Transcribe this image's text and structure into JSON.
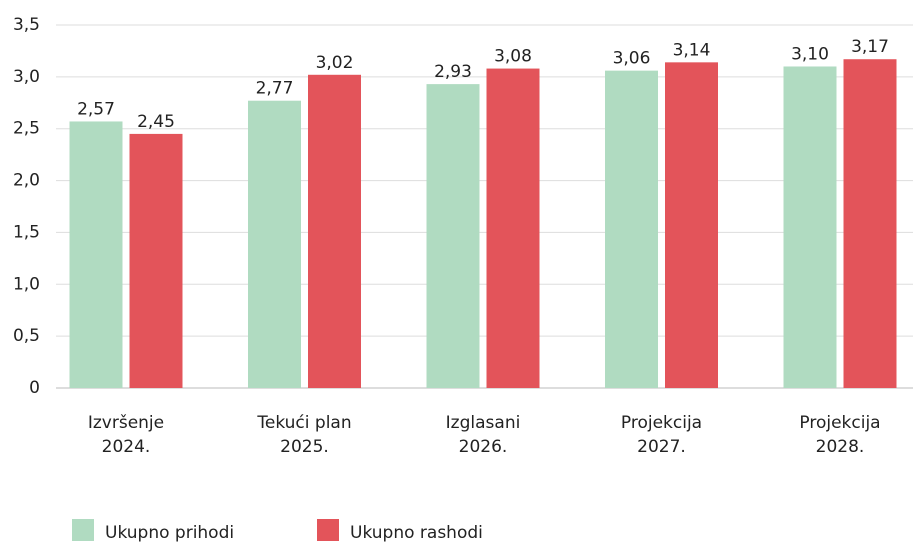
{
  "chart_data": {
    "type": "bar",
    "categories": [
      [
        "Izvršenje",
        "2024."
      ],
      [
        "Tekući plan",
        "2025."
      ],
      [
        "Izglasani",
        "2026."
      ],
      [
        "Projekcija",
        "2027."
      ],
      [
        "Projekcija",
        "2028."
      ]
    ],
    "series": [
      {
        "name": "Ukupno prihodi",
        "color": "#b0dbc1",
        "values": [
          2.57,
          2.77,
          2.93,
          3.06,
          3.1
        ],
        "value_labels": [
          "2,57",
          "2,77",
          "2,93",
          "3,06",
          "3,10"
        ]
      },
      {
        "name": "Ukupno rashodi",
        "color": "#e3545a",
        "values": [
          2.45,
          3.02,
          3.08,
          3.14,
          3.17
        ],
        "value_labels": [
          "2,45",
          "3,02",
          "3,08",
          "3,14",
          "3,17"
        ]
      }
    ],
    "ylim": [
      0,
      3.5
    ],
    "yticks": [
      0,
      {
        "value": 0.5,
        "label": "0,5"
      },
      {
        "value": 1,
        "label": "1,0"
      },
      {
        "value": 1.5,
        "label": "1,5"
      },
      {
        "value": 2,
        "label": "2,0"
      },
      {
        "value": 2.5,
        "label": "2,5"
      },
      {
        "value": 3,
        "label": "3,0"
      },
      {
        "value": 3.5,
        "label": "3,5"
      }
    ],
    "grid": true
  }
}
